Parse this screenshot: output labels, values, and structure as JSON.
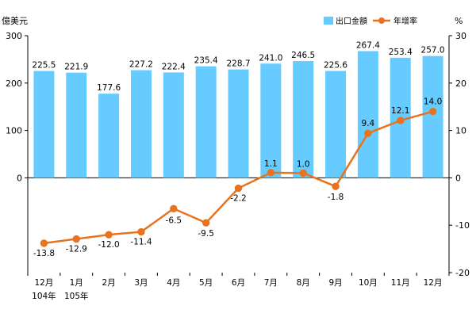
{
  "chart_data": {
    "type": "bar",
    "left_axis_unit": "億美元",
    "right_axis_unit": "%",
    "categories": [
      "12月",
      "1月",
      "2月",
      "3月",
      "4月",
      "5月",
      "6月",
      "7月",
      "8月",
      "9月",
      "10月",
      "11月",
      "12月"
    ],
    "year_labels": [
      "104年",
      "105年"
    ],
    "series": [
      {
        "name": "出口金額",
        "kind": "bar",
        "axis": "left",
        "color": "#66CCFF",
        "values": [
          225.5,
          221.9,
          177.6,
          227.2,
          222.4,
          235.4,
          228.7,
          241.0,
          246.5,
          225.6,
          267.4,
          253.4,
          257.0
        ],
        "labels": [
          "225.5",
          "221.9",
          "177.6",
          "227.2",
          "222.4",
          "235.4",
          "228.7",
          "241.0",
          "246.5",
          "225.6",
          "267.4",
          "253.4",
          "257.0"
        ]
      },
      {
        "name": "年增率",
        "kind": "line",
        "axis": "right",
        "color": "#E8731E",
        "values": [
          -13.8,
          -12.9,
          -12.0,
          -11.4,
          -6.5,
          -9.5,
          -2.2,
          1.1,
          1.0,
          -1.8,
          9.4,
          12.1,
          14.0
        ],
        "labels": [
          "-13.8",
          "-12.9",
          "-12.0",
          "-11.4",
          "-6.5",
          "-9.5",
          "-2.2",
          "1.1",
          "1.0",
          "-1.8",
          "9.4",
          "12.1",
          "14.0"
        ]
      }
    ],
    "left_axis": {
      "ylim": [
        -200,
        300
      ],
      "ticks": [
        "300",
        "200",
        "100",
        "0"
      ],
      "tick_values": [
        300,
        200,
        100,
        0
      ]
    },
    "right_axis": {
      "ylim": [
        -20,
        30
      ],
      "ticks": [
        "30",
        "20",
        "10",
        "0",
        "-10",
        "-20"
      ],
      "tick_values": [
        30,
        20,
        10,
        0,
        -10,
        -20
      ]
    },
    "grid": false,
    "legend_position": "top-right"
  }
}
